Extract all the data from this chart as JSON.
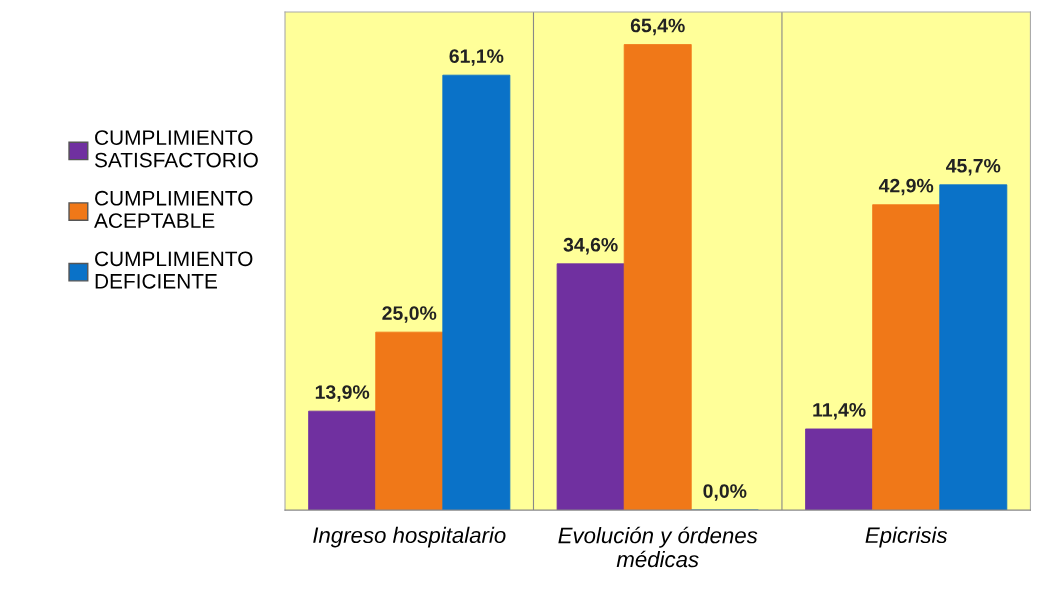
{
  "chart_data": {
    "type": "bar",
    "categories": [
      "Ingreso hospitalario",
      "Evolución y órdenes\nmédicas",
      "Epicrisis"
    ],
    "series": [
      {
        "name": "CUMPLIMIENTO\nSATISFACTORIO",
        "color": "#7030a0",
        "values": [
          13.9,
          34.6,
          11.4
        ],
        "value_labels": [
          "13,9%",
          "34,6%",
          "11,4%"
        ]
      },
      {
        "name": "CUMPLIMIENTO\nACEPTABLE",
        "color": "#f07818",
        "values": [
          25.0,
          65.4,
          42.9
        ],
        "value_labels": [
          "25,0%",
          "65,4%",
          "42,9%"
        ]
      },
      {
        "name": "CUMPLIMIENTO\nDEFICIENTE",
        "color": "#0a72c8",
        "values": [
          61.1,
          0.0,
          45.7
        ],
        "value_labels": [
          "61,1%",
          "0,0%",
          "45,7%"
        ]
      }
    ],
    "tick_labels": "x",
    "grid": false,
    "legend": "left"
  }
}
